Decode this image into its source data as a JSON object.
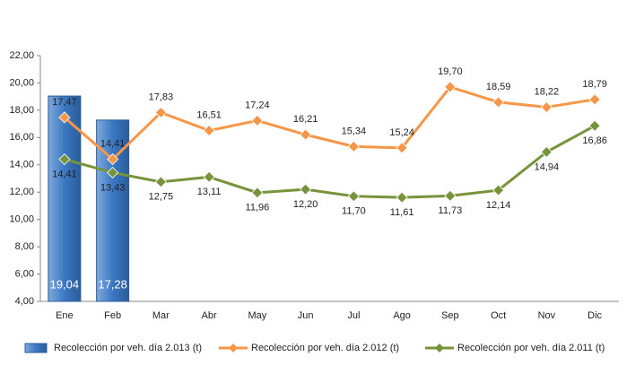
{
  "chart_data": {
    "type": "bar-line",
    "categories": [
      "Ene",
      "Feb",
      "Mar",
      "Abr",
      "May",
      "Jun",
      "Jul",
      "Ago",
      "Sep",
      "Oct",
      "Nov",
      "Dic"
    ],
    "series": [
      {
        "name": "Recolección por veh. día 2.013 (t)",
        "type": "bar",
        "color": "#3b78c2",
        "values": [
          19.04,
          17.28,
          null,
          null,
          null,
          null,
          null,
          null,
          null,
          null,
          null,
          null
        ],
        "value_labels": [
          "19,04",
          "17,28",
          null,
          null,
          null,
          null,
          null,
          null,
          null,
          null,
          null,
          null
        ]
      },
      {
        "name": "Recolección por veh. día 2.012 (t)",
        "type": "line",
        "color": "#f79646",
        "values": [
          17.47,
          14.41,
          17.83,
          16.51,
          17.24,
          16.21,
          15.34,
          15.24,
          19.7,
          18.59,
          18.22,
          18.79
        ],
        "value_labels": [
          "17,47",
          "14,41",
          "17,83",
          "16,51",
          "17,24",
          "16,21",
          "15,34",
          "15,24",
          "19,70",
          "18,59",
          "18,22",
          "18,79"
        ]
      },
      {
        "name": "Recolección por veh. día 2.011 (t)",
        "type": "line",
        "color": "#77933c",
        "values": [
          14.41,
          13.43,
          12.75,
          13.11,
          11.96,
          12.2,
          11.7,
          11.61,
          11.73,
          12.14,
          14.94,
          16.86
        ],
        "value_labels": [
          "14,41",
          "13,43",
          "12,75",
          "13,11",
          "11,96",
          "12,20",
          "11,70",
          "11,61",
          "11,73",
          "12,14",
          "14,94",
          "16,86"
        ]
      }
    ],
    "ylim": [
      4,
      22
    ],
    "yticks": [
      {
        "value": 4,
        "label": "4,00"
      },
      {
        "value": 6,
        "label": "6,00"
      },
      {
        "value": 8,
        "label": "8,00"
      },
      {
        "value": 10,
        "label": "10,00"
      },
      {
        "value": 12,
        "label": "12,00"
      },
      {
        "value": 14,
        "label": "14,00"
      },
      {
        "value": 16,
        "label": "16,00"
      },
      {
        "value": 18,
        "label": "18,00"
      },
      {
        "value": 20,
        "label": "20,00"
      },
      {
        "value": 22,
        "label": "22,00"
      }
    ],
    "legend": "bottom"
  }
}
